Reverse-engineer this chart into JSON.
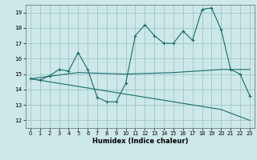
{
  "xlabel": "Humidex (Indice chaleur)",
  "xlim": [
    -0.5,
    23.5
  ],
  "ylim": [
    11.5,
    19.5
  ],
  "yticks": [
    12,
    13,
    14,
    15,
    16,
    17,
    18,
    19
  ],
  "xticks": [
    0,
    1,
    2,
    3,
    4,
    5,
    6,
    7,
    8,
    9,
    10,
    11,
    12,
    13,
    14,
    15,
    16,
    17,
    18,
    19,
    20,
    21,
    22,
    23
  ],
  "bg_color": "#cce8e8",
  "grid_color": "#9bbfbf",
  "line_color": "#1a6b6b",
  "line1_x": [
    0,
    1,
    2,
    3,
    4,
    5,
    6,
    7,
    8,
    9,
    10,
    11,
    12,
    13,
    14,
    15,
    16,
    17,
    18,
    19,
    20,
    21,
    22,
    23
  ],
  "line1_y": [
    14.7,
    14.6,
    14.9,
    15.3,
    15.2,
    16.4,
    15.3,
    13.5,
    13.2,
    13.2,
    14.4,
    17.5,
    18.2,
    17.5,
    17.0,
    17.0,
    17.8,
    17.2,
    19.2,
    19.3,
    17.9,
    15.3,
    15.0,
    13.6
  ],
  "line2_x": [
    0,
    5,
    10,
    15,
    20,
    23
  ],
  "line2_y": [
    14.7,
    15.1,
    15.0,
    15.1,
    15.3,
    15.3
  ],
  "line3_x": [
    0,
    5,
    10,
    15,
    20,
    23
  ],
  "line3_y": [
    14.7,
    14.2,
    13.7,
    13.2,
    12.7,
    12.0
  ]
}
